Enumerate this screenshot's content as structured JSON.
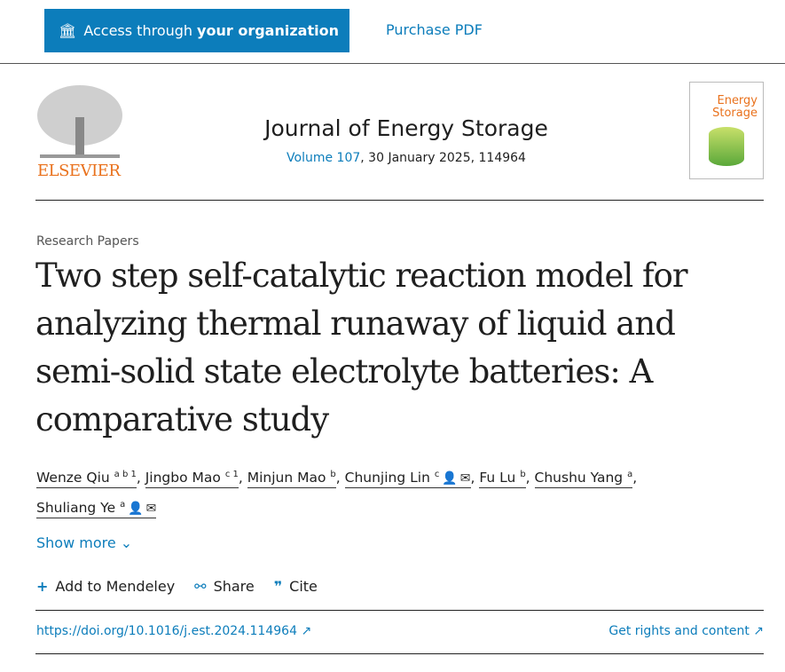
{
  "topbar": {
    "access_prefix": "Access through",
    "access_bold": "your organization",
    "purchase": "Purchase PDF"
  },
  "publisher": {
    "logo_text": "ELSEVIER"
  },
  "journal": {
    "title": "Journal of Energy Storage",
    "volume": "Volume 107",
    "details": ", 30 January 2025, 114964",
    "cover_text": "Energy Storage"
  },
  "article": {
    "type": "Research Papers",
    "title": "Two step self-catalytic reaction model for analyzing thermal runaway of liquid and semi-solid state electrolyte batteries: A comparative study",
    "authors": [
      {
        "name": "Wenze Qiu",
        "sup": "a b 1"
      },
      {
        "name": "Jingbo Mao",
        "sup": "c 1"
      },
      {
        "name": "Minjun Mao",
        "sup": "b"
      },
      {
        "name": "Chunjing Lin",
        "sup": "c",
        "corresponding": true
      },
      {
        "name": "Fu Lu",
        "sup": "b"
      },
      {
        "name": "Chushu Yang",
        "sup": "a"
      },
      {
        "name": "Shuliang Ye",
        "sup": "a",
        "corresponding": true
      }
    ],
    "show_more": "Show more"
  },
  "actions": {
    "mendeley": "Add to Mendeley",
    "share": "Share",
    "cite": "Cite"
  },
  "links": {
    "doi": "https://doi.org/10.1016/j.est.2024.114964",
    "rights": "Get rights and content"
  },
  "colors": {
    "accent": "#0c7dbb",
    "elsevier": "#e9711c"
  }
}
